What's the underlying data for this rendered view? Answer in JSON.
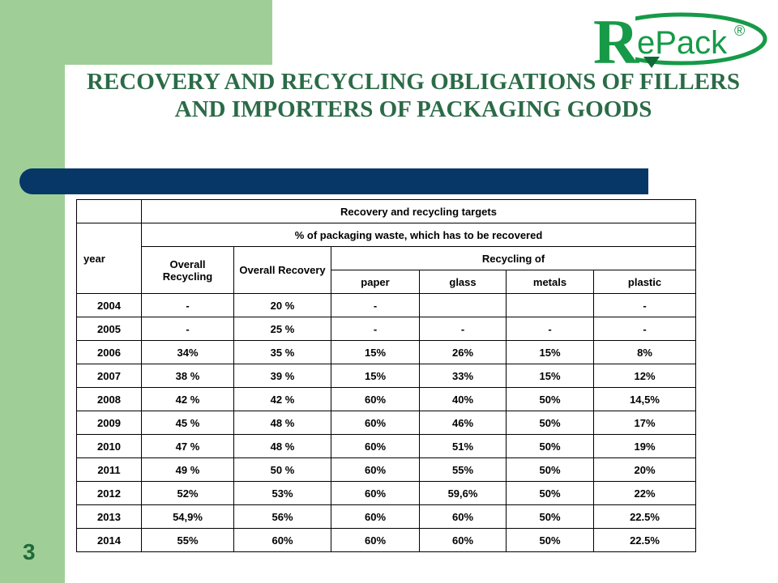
{
  "slide": {
    "title": "RECOVERY AND RECYCLING OBLIGATIONS OF FILLERS AND IMPORTERS OF PACKAGING GOODS",
    "number": "3",
    "accent_color": "#9fcf97",
    "bar_color": "#063767",
    "title_color": "#2b6b47"
  },
  "logo": {
    "text_r": "R",
    "text_epack": "ePack",
    "registered": "®",
    "colors": {
      "green": "#169a48",
      "dark_green": "#0d6b34"
    }
  },
  "table": {
    "header": {
      "targets": "Recovery and recycling targets",
      "year": "year",
      "percent": "% of packaging waste, which has to be recovered",
      "overall_recycling": "Overall Recycling",
      "overall_recovery": "Overall Recovery",
      "recycling_of": "Recycling of",
      "paper": "paper",
      "glass": "glass",
      "metals": "metals",
      "plastic": "plastic"
    },
    "rows": [
      [
        "2004",
        "-",
        "20 %",
        "-",
        "",
        "",
        "-"
      ],
      [
        "2005",
        "-",
        "25 %",
        "-",
        "-",
        "-",
        "-"
      ],
      [
        "2006",
        "34%",
        "35 %",
        "15%",
        "26%",
        "15%",
        "8%"
      ],
      [
        "2007",
        "38 %",
        "39 %",
        "15%",
        "33%",
        "15%",
        "12%"
      ],
      [
        "2008",
        "42 %",
        "42 %",
        "60%",
        "40%",
        "50%",
        "14,5%"
      ],
      [
        "2009",
        "45 %",
        "48 %",
        "60%",
        "46%",
        "50%",
        "17%"
      ],
      [
        "2010",
        "47 %",
        "48 %",
        "60%",
        "51%",
        "50%",
        "19%"
      ],
      [
        "2011",
        "49 %",
        "50 %",
        "60%",
        "55%",
        "50%",
        "20%"
      ],
      [
        "2012",
        "52%",
        "53%",
        "60%",
        "59,6%",
        "50%",
        "22%"
      ],
      [
        "2013",
        "54,9%",
        "56%",
        "60%",
        "60%",
        "50%",
        "22.5%"
      ],
      [
        "2014",
        "55%",
        "60%",
        "60%",
        "60%",
        "50%",
        "22.5%"
      ]
    ]
  }
}
